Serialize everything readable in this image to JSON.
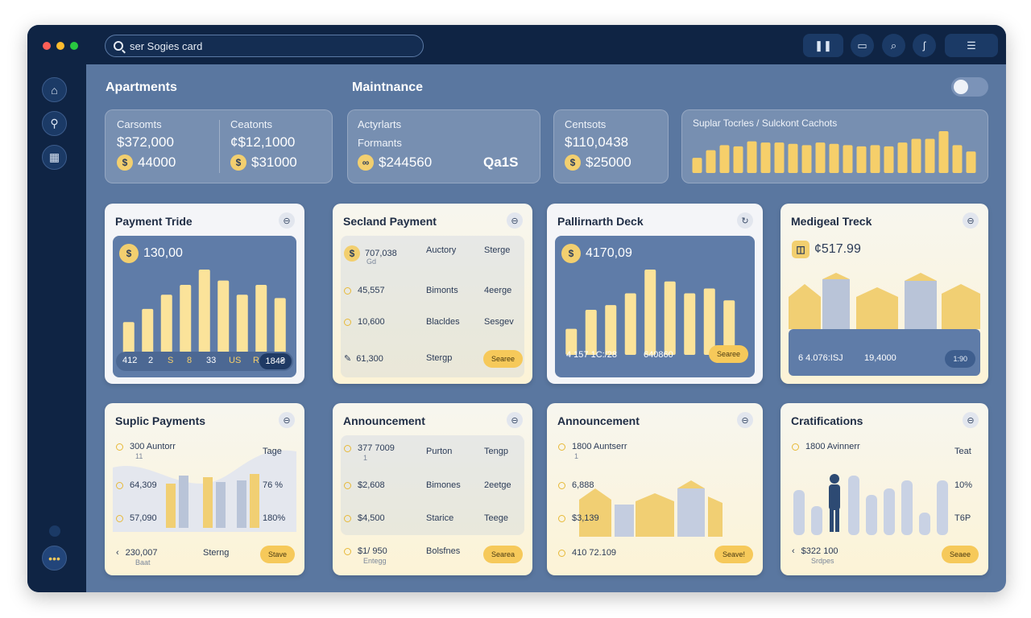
{
  "topbar": {
    "search_text": "ser Sogies card"
  },
  "sections": {
    "apartments": "Apartments",
    "maintenance": "Maintnance"
  },
  "summary": {
    "apartments": {
      "col1": {
        "label": "Carsomts",
        "value": "$372,000",
        "coin_value": "44000"
      },
      "col2": {
        "label": "Ceatonts",
        "value": "¢$12,1000",
        "coin_value": "$31000"
      }
    },
    "maintenance": {
      "label1": "Actyrlarts",
      "label2": "Formants",
      "coin_value": "$244560",
      "badge": "Qa1S"
    },
    "third": {
      "label": "Centsots",
      "value": "$110,0438",
      "coin_value": "$25000"
    },
    "fourth": {
      "label": "Suplar Tocrles / Sulckont Cachots"
    }
  },
  "cards": {
    "payment_trude": {
      "title": "Payment Tride",
      "amount": "130,00",
      "axis": [
        "412",
        "2",
        "S",
        "8",
        "33",
        "US",
        "R"
      ],
      "badge": "184₴"
    },
    "second_payment": {
      "title": "Secland Payment",
      "rows": [
        {
          "c1": "707,038",
          "sub": "Gd",
          "c2": "Auctory",
          "c3": "Sterge"
        },
        {
          "c1": "45,557",
          "c2": "Bimonts",
          "c3": "4eerge"
        },
        {
          "c1": "10,600",
          "c2": "Blacldes",
          "c3": "Sesgev"
        },
        {
          "c1": "61,300",
          "c2": "Stergp"
        }
      ],
      "button": "Searee"
    },
    "pallirnarth": {
      "title": "Pallirnarth Deck",
      "amount": "4170,09",
      "footer1": "4 157 1C:/28",
      "footer2": "640860",
      "button": "Searee"
    },
    "medigeal": {
      "title": "Medigeal Treck",
      "amount": "¢517.99",
      "footer1": "6 4.076:ІЅЈ",
      "footer2": "19,4000",
      "button": "1:90"
    },
    "suplic": {
      "title": "Suplic Payments",
      "rows": [
        {
          "c1": "300 Auntorr",
          "sub": "11",
          "c3": "Tage"
        },
        {
          "c1": "64,309",
          "c3": "76 %"
        },
        {
          "c1": "57,090",
          "c3": "180%"
        }
      ],
      "footer1": "230,007",
      "footer_sub": "Baat",
      "footer2": "Sterng",
      "button": "Stave"
    },
    "announcement1": {
      "title": "Announcement",
      "rows": [
        {
          "c1": "377 7009",
          "sub": "1",
          "c2": "Purton",
          "c3": "Tengp"
        },
        {
          "c1": "$2,608",
          "c2": "Bimones",
          "c3": "2eetge"
        },
        {
          "c1": "$4,500",
          "c2": "Starice",
          "c3": "Teege"
        },
        {
          "c1": "$1/ 950",
          "sub": "Entegg",
          "c2": "Bolsfnes"
        }
      ],
      "button": "Searea"
    },
    "announcement2": {
      "title": "Announcement",
      "rows": [
        {
          "c1": "1800 Auntserr",
          "sub": "1"
        },
        {
          "c1": "6,888"
        },
        {
          "c1": "$3,139"
        }
      ],
      "footer1": "410 72.109",
      "button": "Seave!"
    },
    "cratifications": {
      "title": "Cratifications",
      "rows": [
        {
          "c1": "1800 Avinnerr",
          "c3": "Teat"
        },
        {
          "c3": "10%"
        },
        {
          "c3": "T6P"
        }
      ],
      "footer1": "$322 100",
      "footer_sub": "Srdpes",
      "button": "Seaee"
    }
  },
  "chart_data": [
    {
      "type": "bar",
      "title": "",
      "values": [
        12,
        18,
        22,
        21,
        25,
        24,
        24,
        23,
        22,
        24,
        23,
        22,
        21,
        22,
        21,
        24,
        27,
        27,
        33,
        22,
        17
      ]
    },
    {
      "type": "bar",
      "title": "",
      "values": [
        30,
        42,
        55,
        64,
        78,
        68,
        55,
        64,
        52
      ]
    },
    {
      "type": "bar",
      "title": "",
      "values": [
        22,
        38,
        42,
        52,
        72,
        62,
        52,
        56,
        46
      ]
    }
  ]
}
